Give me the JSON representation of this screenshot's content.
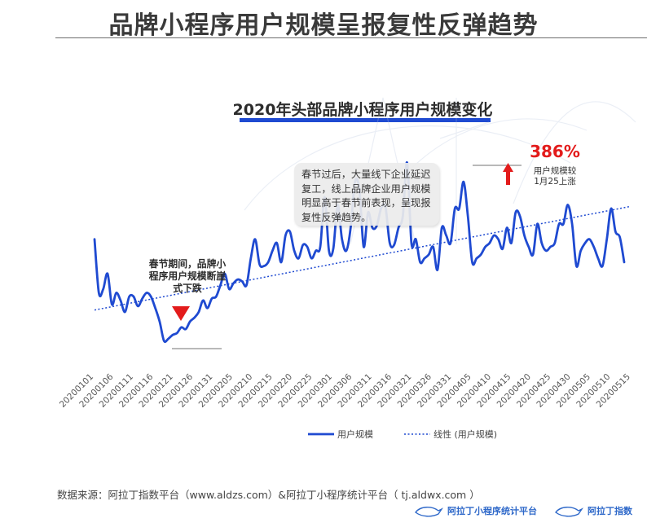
{
  "page": {
    "title": "品牌小程序用户规模呈报复性反弹趋势",
    "source_text": "数据来源：阿拉丁指数平台（www.aldzs.com）&阿拉丁小程序统计平台（ tj.aldwx.com ）",
    "logos": {
      "stats_platform": "阿拉丁小程序统计平台",
      "index_platform": "阿拉丁指数"
    }
  },
  "annotations": {
    "callout": "春节过后，大量线下企业延迟复工，线上品牌企业用户规模明显高于春节前表现，呈现报复性反弹趋势。",
    "drop_note": "春节期间，品牌小程序用户规模断崖式下跌",
    "peak_percent": "386%",
    "peak_note_1": "用户规模较",
    "peak_note_2": "1月25上涨"
  },
  "colors": {
    "line": "#1f4ad1",
    "trend": "#1f4ad1",
    "accent_red": "#e31b1b",
    "callout_bg": "#ececec"
  },
  "chart_data": {
    "type": "line",
    "title": "2020年头部品牌小程序用户规模变化",
    "xlabel": "",
    "ylabel": "",
    "y_axis_visible": false,
    "ylim": [
      0,
      100
    ],
    "grid": false,
    "legend_position": "bottom",
    "legend": [
      {
        "name": "用户规模",
        "style": "solid"
      },
      {
        "name": "线性 (用户规模)",
        "style": "dotted"
      }
    ],
    "x_tick_labels": [
      "20200101",
      "20200106",
      "20200111",
      "20200116",
      "20200121",
      "20200126",
      "20200131",
      "20200205",
      "20200210",
      "20200215",
      "20200220",
      "20200225",
      "20200301",
      "20200306",
      "20200311",
      "20200316",
      "20200321",
      "20200326",
      "20200331",
      "20200405",
      "20200410",
      "20200415",
      "20200420",
      "20200425",
      "20200430",
      "20200505",
      "20200510",
      "20200515"
    ],
    "series": [
      {
        "name": "用户规模",
        "start_date": "20200101",
        "values": [
          58,
          30,
          32,
          40,
          24,
          30,
          26,
          20,
          28,
          28,
          23,
          27,
          30,
          28,
          22,
          15,
          5,
          6,
          8,
          9,
          12,
          11,
          15,
          17,
          20,
          26,
          22,
          27,
          28,
          34,
          40,
          32,
          35,
          37,
          36,
          34,
          48,
          58,
          45,
          44,
          46,
          52,
          56,
          46,
          60,
          62,
          52,
          48,
          55,
          54,
          48,
          52,
          54,
          80,
          52,
          53,
          76,
          58,
          52,
          64,
          88,
          84,
          54,
          72,
          64,
          65,
          74,
          75,
          56,
          55,
          64,
          70,
          98,
          56,
          58,
          46,
          48,
          50,
          54,
          42,
          64,
          60,
          56,
          74,
          74,
          88,
          70,
          46,
          48,
          50,
          54,
          56,
          60,
          58,
          53,
          64,
          56,
          72,
          70,
          60,
          54,
          50,
          66,
          56,
          52,
          54,
          56,
          66,
          66,
          76,
          66,
          44,
          52,
          56,
          58,
          54,
          48,
          44,
          58,
          74,
          62,
          59,
          46
        ]
      },
      {
        "name": "线性 (用户规模)",
        "trendline": "linear",
        "start": 21,
        "end": 75
      }
    ]
  }
}
